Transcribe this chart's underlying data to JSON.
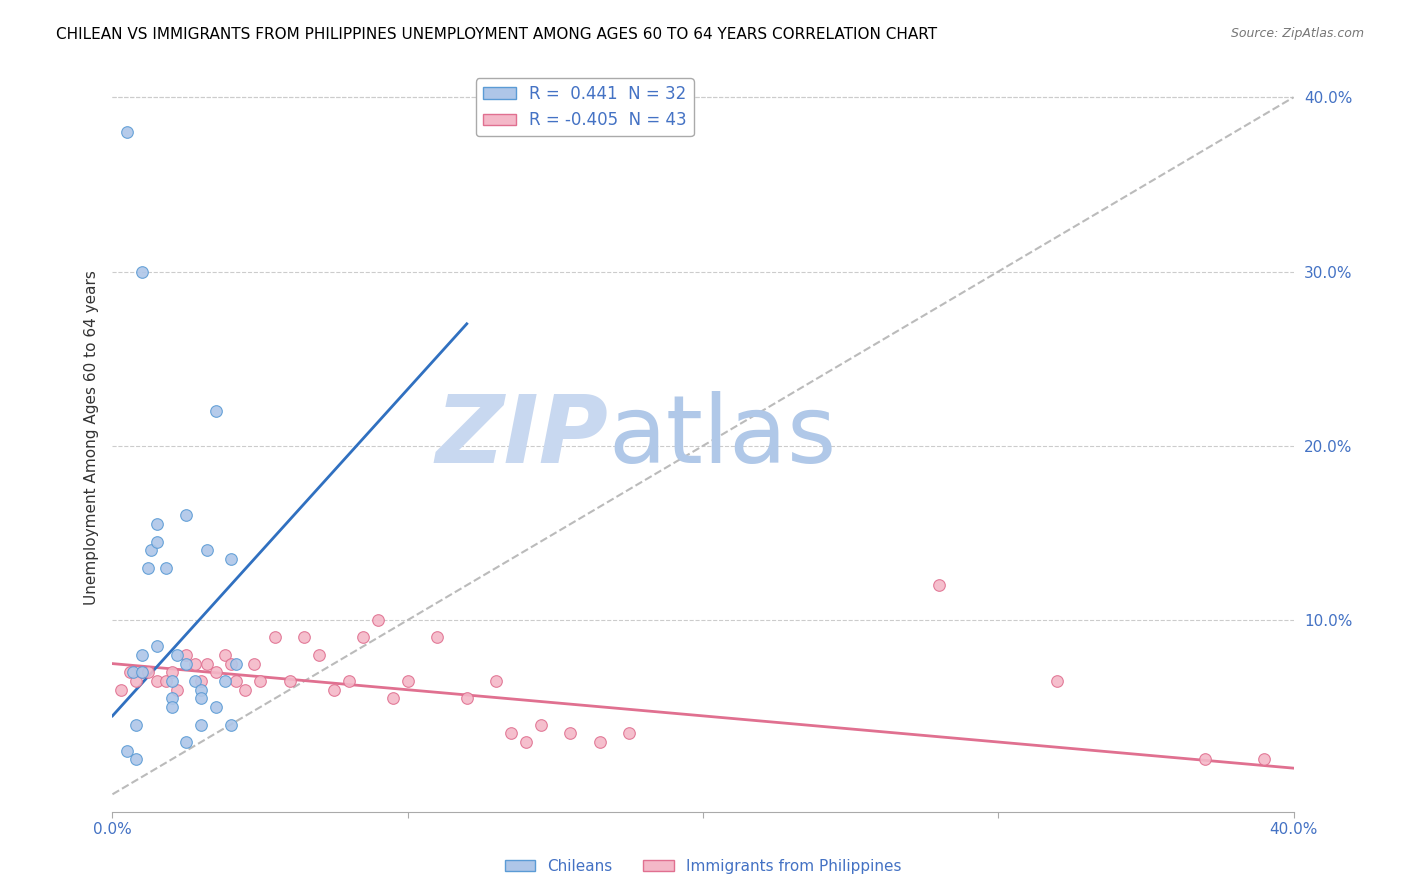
{
  "title": "CHILEAN VS IMMIGRANTS FROM PHILIPPINES UNEMPLOYMENT AMONG AGES 60 TO 64 YEARS CORRELATION CHART",
  "source": "Source: ZipAtlas.com",
  "ylabel": "Unemployment Among Ages 60 to 64 years",
  "xlim": [
    0.0,
    0.4
  ],
  "ylim": [
    -0.01,
    0.42
  ],
  "xticks": [
    0.0,
    0.4
  ],
  "xticklabels": [
    "0.0%",
    "40.0%"
  ],
  "yticks": [
    0.1,
    0.2,
    0.3,
    0.4
  ],
  "yticklabels": [
    "10.0%",
    "20.0%",
    "30.0%",
    "40.0%"
  ],
  "legend_entries": [
    {
      "label": "R =  0.441  N = 32"
    },
    {
      "label": "R = -0.405  N = 43"
    }
  ],
  "watermark_zip": "ZIP",
  "watermark_atlas": "atlas",
  "blue_scatter_x": [
    0.005,
    0.007,
    0.008,
    0.01,
    0.01,
    0.01,
    0.012,
    0.013,
    0.015,
    0.015,
    0.015,
    0.018,
    0.02,
    0.02,
    0.02,
    0.022,
    0.025,
    0.025,
    0.025,
    0.028,
    0.03,
    0.03,
    0.03,
    0.032,
    0.035,
    0.035,
    0.038,
    0.04,
    0.04,
    0.042,
    0.005,
    0.008
  ],
  "blue_scatter_y": [
    0.38,
    0.07,
    0.04,
    0.3,
    0.08,
    0.07,
    0.13,
    0.14,
    0.155,
    0.145,
    0.085,
    0.13,
    0.065,
    0.055,
    0.05,
    0.08,
    0.16,
    0.075,
    0.03,
    0.065,
    0.06,
    0.055,
    0.04,
    0.14,
    0.22,
    0.05,
    0.065,
    0.135,
    0.04,
    0.075,
    0.025,
    0.02
  ],
  "pink_scatter_x": [
    0.003,
    0.006,
    0.008,
    0.01,
    0.012,
    0.015,
    0.018,
    0.02,
    0.022,
    0.025,
    0.028,
    0.03,
    0.032,
    0.035,
    0.038,
    0.04,
    0.042,
    0.045,
    0.048,
    0.05,
    0.055,
    0.06,
    0.065,
    0.07,
    0.075,
    0.08,
    0.085,
    0.09,
    0.095,
    0.1,
    0.11,
    0.12,
    0.13,
    0.135,
    0.14,
    0.145,
    0.155,
    0.165,
    0.175,
    0.28,
    0.32,
    0.37,
    0.39
  ],
  "pink_scatter_y": [
    0.06,
    0.07,
    0.065,
    0.07,
    0.07,
    0.065,
    0.065,
    0.07,
    0.06,
    0.08,
    0.075,
    0.065,
    0.075,
    0.07,
    0.08,
    0.075,
    0.065,
    0.06,
    0.075,
    0.065,
    0.09,
    0.065,
    0.09,
    0.08,
    0.06,
    0.065,
    0.09,
    0.1,
    0.055,
    0.065,
    0.09,
    0.055,
    0.065,
    0.035,
    0.03,
    0.04,
    0.035,
    0.03,
    0.035,
    0.12,
    0.065,
    0.02,
    0.02
  ],
  "blue_line_x": [
    0.0,
    0.12
  ],
  "blue_line_y": [
    0.045,
    0.27
  ],
  "pink_line_x": [
    0.0,
    0.4
  ],
  "pink_line_y": [
    0.075,
    0.015
  ],
  "diag_line_x": [
    0.0,
    0.4
  ],
  "diag_line_y": [
    0.0,
    0.4
  ],
  "bg_color": "#ffffff",
  "plot_bg_color": "#ffffff",
  "grid_color": "#cccccc",
  "title_color": "#000000",
  "source_color": "#777777",
  "blue_color": "#aec6e8",
  "blue_edge_color": "#5b9bd5",
  "pink_color": "#f4b8c8",
  "pink_edge_color": "#e07090",
  "blue_line_color": "#3070c0",
  "pink_line_color": "#e07090",
  "diag_line_color": "#bbbbbb",
  "watermark_color_zip": "#c8d8f0",
  "watermark_color_atlas": "#b0c8e8",
  "marker_size": 70,
  "legend_fontsize": 12,
  "title_fontsize": 11,
  "axis_label_fontsize": 11,
  "tick_fontsize": 11
}
